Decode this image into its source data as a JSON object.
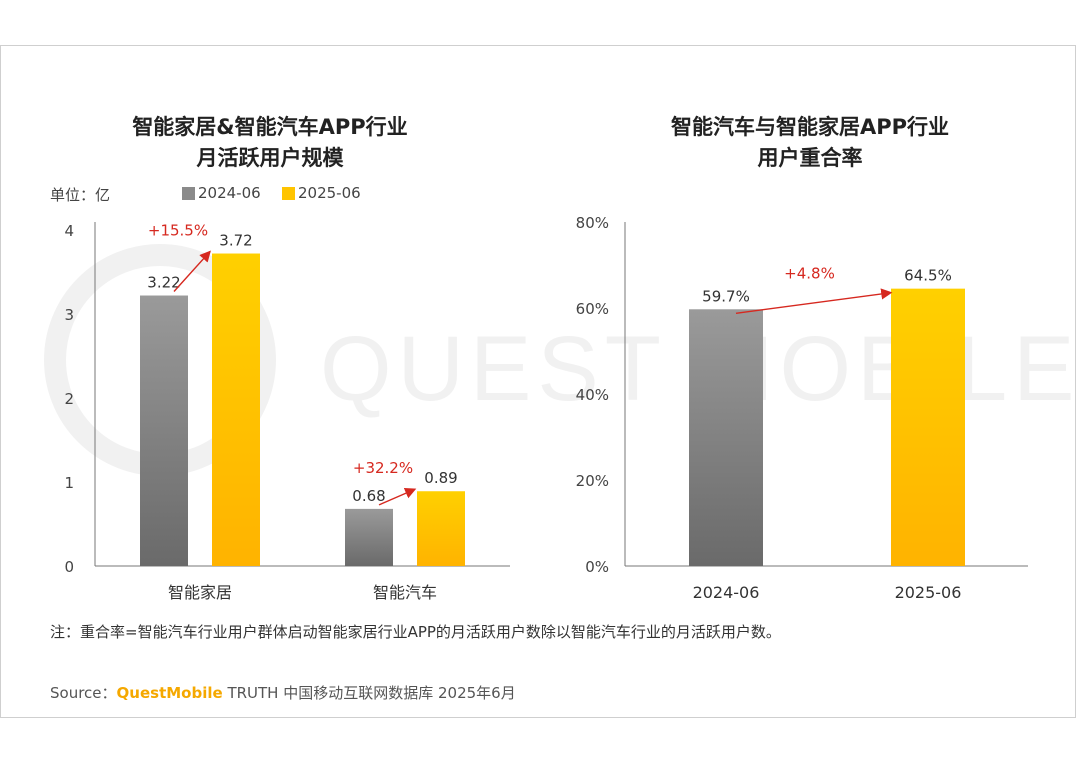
{
  "colors": {
    "gray": "#8a8a8a",
    "yellow": "#ffc400",
    "annotation": "#d6281f",
    "axis": "#555555"
  },
  "unit_label": "单位：亿",
  "watermark_text": "QUEST MOBILE",
  "note": "注：重合率=智能汽车行业用户群体启动智能家居行业APP的月活跃用户数除以智能汽车行业的月活跃用户数。",
  "source": {
    "prefix": "Source：",
    "brand": "QuestMobile",
    "suffix": " TRUTH 中国移动互联网数据库 2025年6月"
  },
  "chart_data": [
    {
      "type": "bar",
      "title_lines": [
        "智能家居&智能汽车APP行业",
        "月活跃用户规模"
      ],
      "categories": [
        "智能家居",
        "智能汽车"
      ],
      "series": [
        {
          "name": "2024-06",
          "values": [
            3.22,
            0.68
          ],
          "labels": [
            "3.22",
            "0.68"
          ],
          "color": "#8a8a8a"
        },
        {
          "name": "2025-06",
          "values": [
            3.72,
            0.89
          ],
          "labels": [
            "3.72",
            "0.89"
          ],
          "color": "#ffc400"
        }
      ],
      "growth": [
        "+15.5%",
        "+32.2%"
      ],
      "ylim": [
        0,
        4
      ],
      "yticks": [
        "0",
        "1",
        "2",
        "3",
        "4"
      ],
      "legend": "top"
    },
    {
      "type": "bar",
      "title_lines": [
        "智能汽车与智能家居APP行业",
        "用户重合率"
      ],
      "categories": [
        "2024-06",
        "2025-06"
      ],
      "values": [
        59.7,
        64.5
      ],
      "labels": [
        "59.7%",
        "64.5%"
      ],
      "colors": [
        "#8a8a8a",
        "#ffc400"
      ],
      "growth": "+4.8%",
      "ylim": [
        0,
        80
      ],
      "yticks": [
        "0%",
        "20%",
        "40%",
        "60%",
        "80%"
      ]
    }
  ]
}
